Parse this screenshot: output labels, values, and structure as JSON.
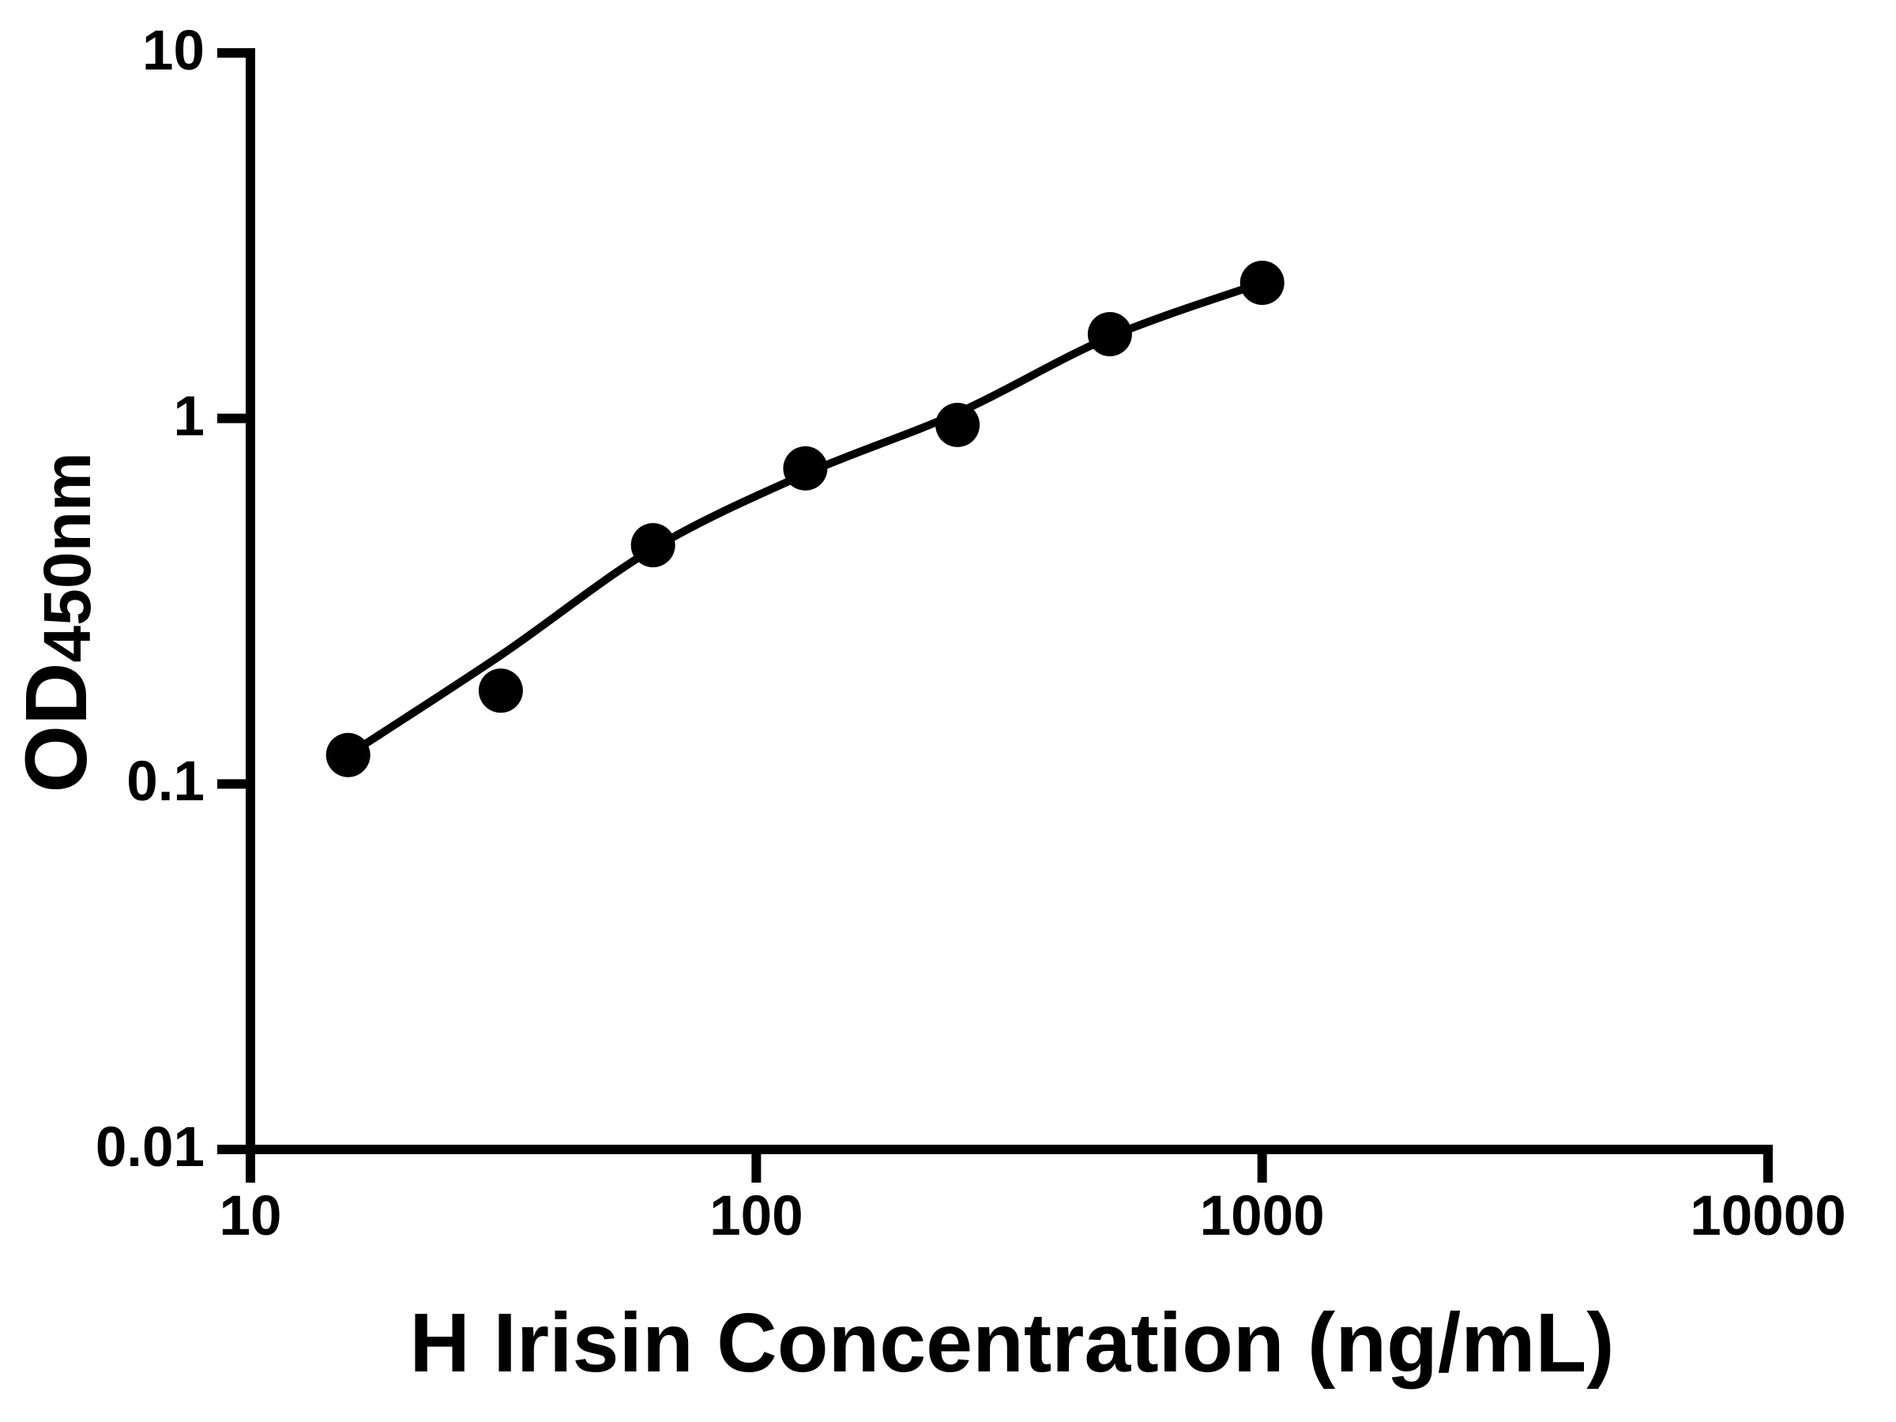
{
  "chart_data": {
    "type": "scatter",
    "title": "",
    "xlabel": "H Irisin Concentration (ng/mL)",
    "ylabel": {
      "main": "OD",
      "sub": "450nm"
    },
    "x_scale": "log",
    "y_scale": "log",
    "xlim": [
      10,
      10000
    ],
    "ylim": [
      0.01,
      10
    ],
    "x_ticks": [
      10,
      100,
      1000,
      10000
    ],
    "y_ticks": [
      0.01,
      0.1,
      1,
      10
    ],
    "grid": false,
    "legend": null,
    "axis_color": "#000000",
    "background": "#ffffff",
    "series": [
      {
        "name": "standard curve data points",
        "marker": "circle",
        "color": "#000000",
        "x": [
          15.6,
          31.25,
          62.5,
          125,
          250,
          500,
          1000
        ],
        "y": [
          0.12,
          0.18,
          0.45,
          0.73,
          0.96,
          1.7,
          2.35
        ]
      }
    ],
    "fit_curve": {
      "name": "fitted regression curve",
      "color": "#000000",
      "x": [
        15.6,
        31.25,
        62.5,
        125,
        250,
        500,
        1000
      ],
      "y": [
        0.12,
        0.225,
        0.44,
        0.705,
        1.035,
        1.67,
        2.35
      ]
    }
  }
}
